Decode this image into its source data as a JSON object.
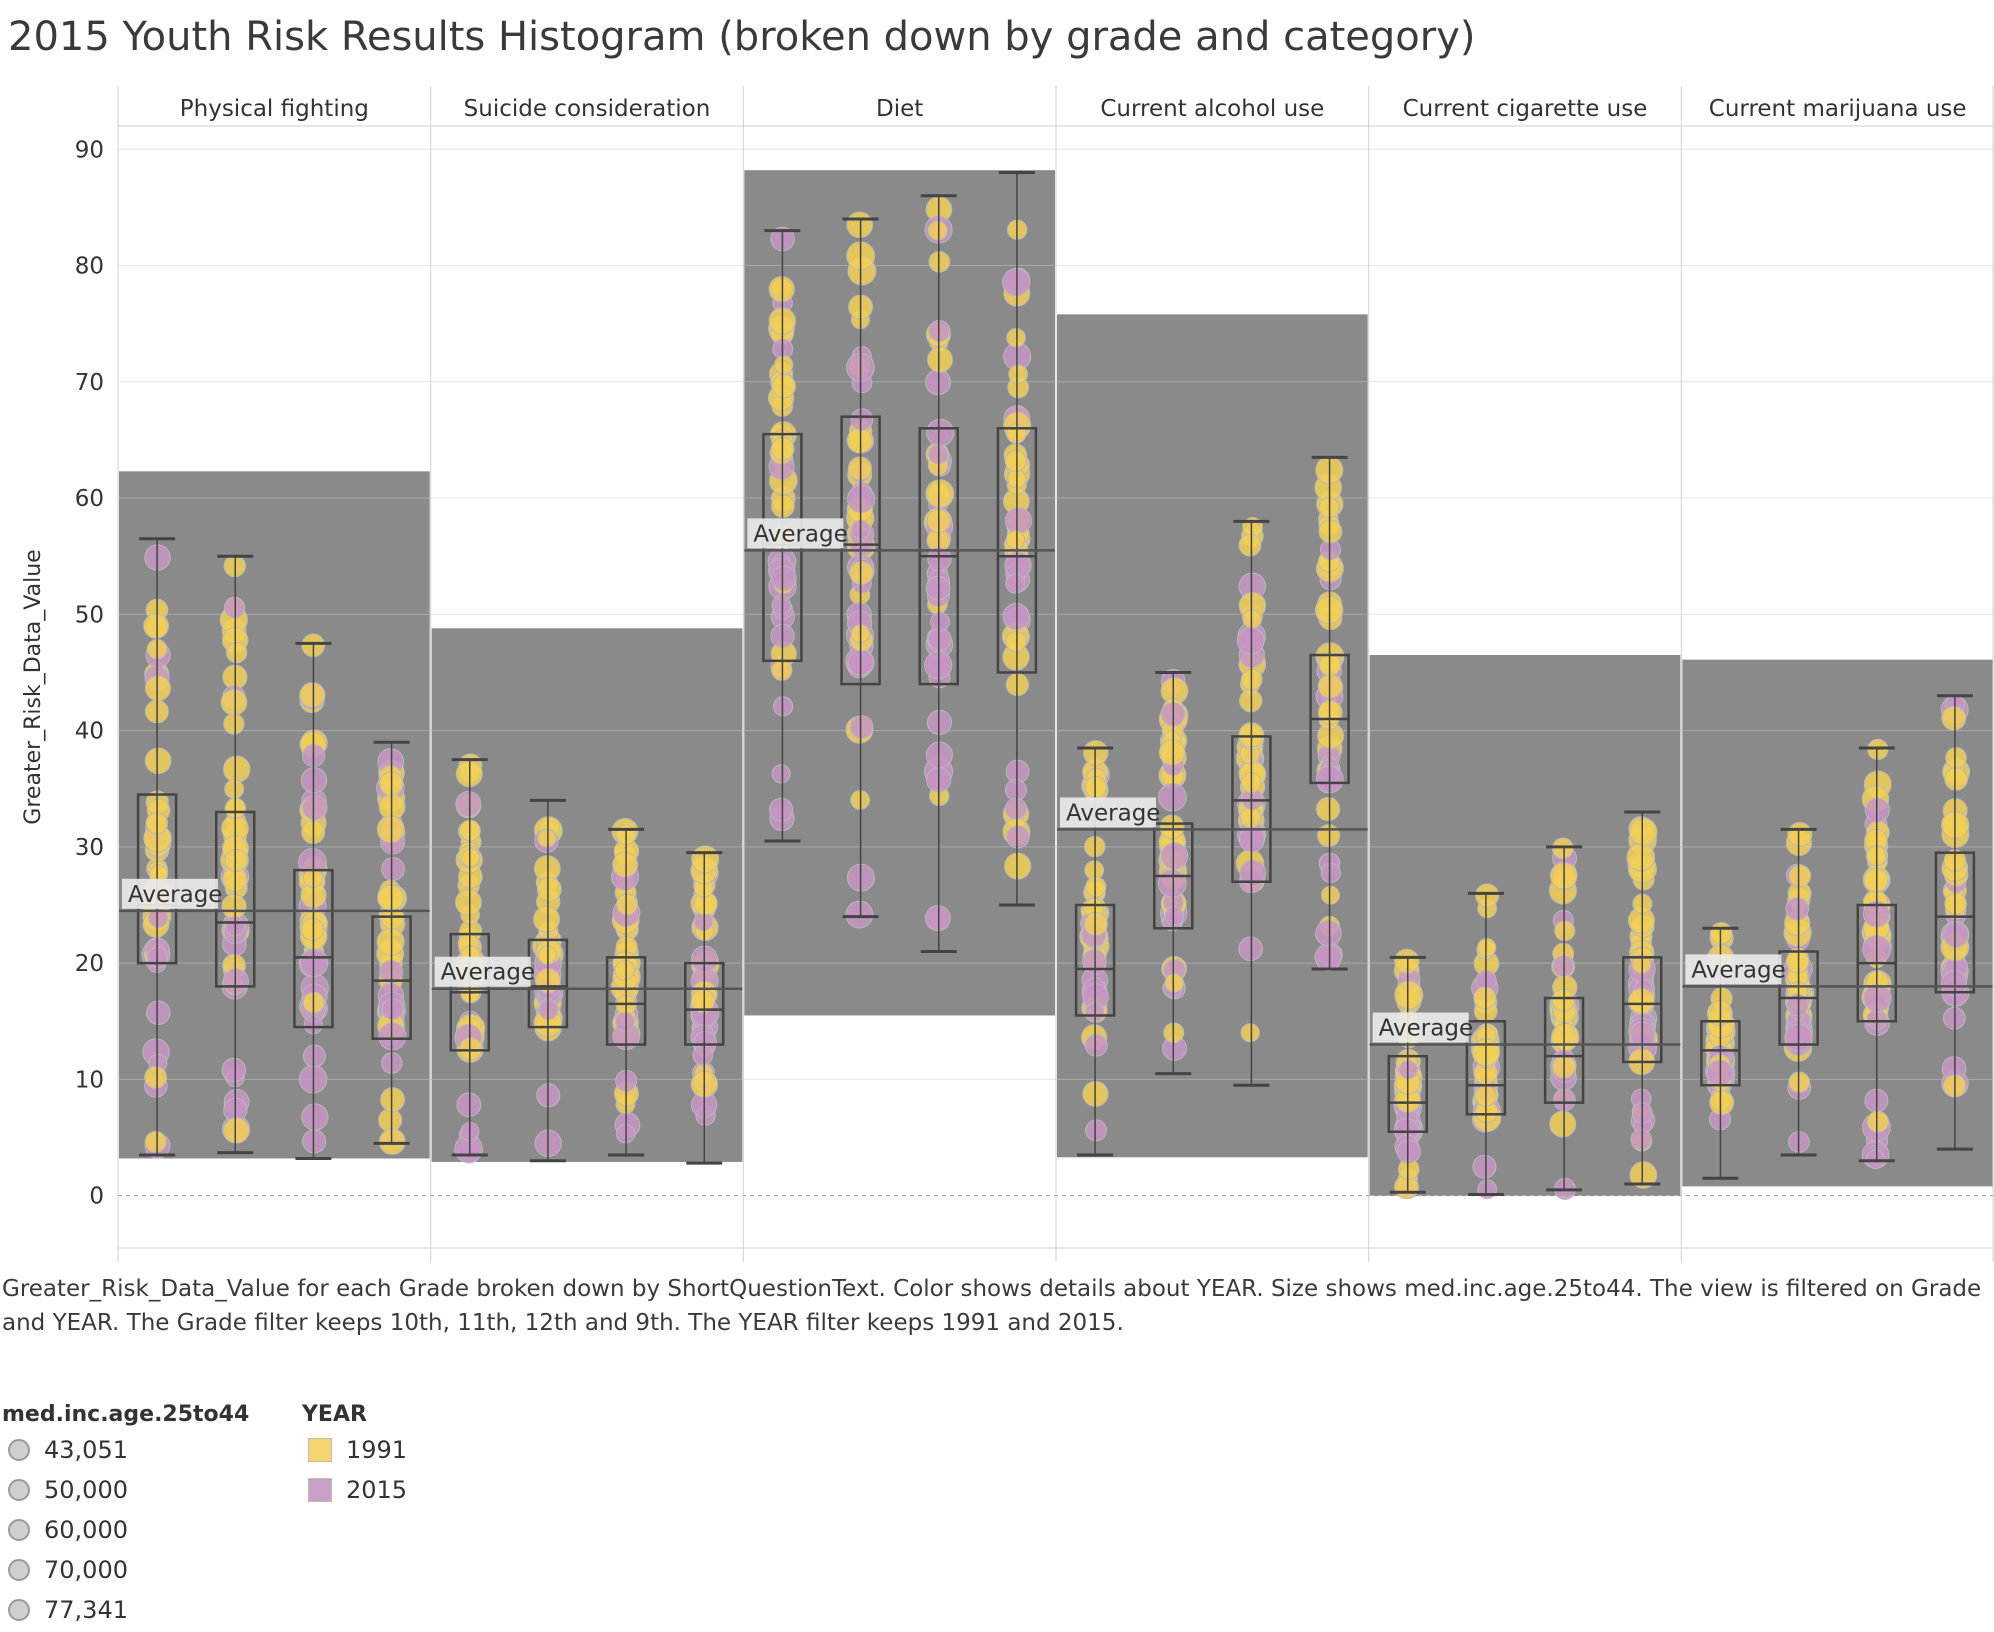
{
  "title": "2015 Youth Risk Results Histogram (broken down by grade and category)",
  "caption": "Greater_Risk_Data_Value for each Grade broken down by ShortQuestionText.  Color shows details about YEAR.  Size shows med.inc.age.25to44. The view is filtered on Grade and YEAR. The Grade filter keeps 10th, 11th, 12th and 9th. The YEAR filter keeps 1991 and 2015.",
  "legend_size": {
    "title": "med.inc.age.25to44",
    "items": [
      "43,051",
      "50,000",
      "60,000",
      "70,000",
      "77,341"
    ]
  },
  "legend_color": {
    "title": "YEAR",
    "items": [
      {
        "label": "1991",
        "color": "#f5d56e"
      },
      {
        "label": "2015",
        "color": "#c9a0c6"
      }
    ]
  },
  "colors": {
    "band": "#8a8a8a",
    "y1991": "#f2cf55",
    "y2015": "#c794c4",
    "grid": "#e6e6e6",
    "boxStroke": "#444444"
  },
  "chart_data": {
    "type": "scatter",
    "ylabel": "Greater_Risk_Data_Value",
    "ylim": [
      -4.5,
      92
    ],
    "yticks": [
      0,
      10,
      20,
      30,
      40,
      50,
      60,
      70,
      80,
      90
    ],
    "grades": [
      "9th",
      "10th",
      "11th",
      "12th"
    ],
    "average_label": "Average",
    "facets": [
      {
        "name": "Physical fighting",
        "average": 24.5,
        "band": [
          3.2,
          62.3
        ],
        "boxes": [
          {
            "grade": "9th",
            "wlo": 3.5,
            "q1": 20,
            "med": 25,
            "q3": 34.5,
            "whi": 56.5
          },
          {
            "grade": "10th",
            "wlo": 3.7,
            "q1": 18,
            "med": 23.5,
            "q3": 33,
            "whi": 55
          },
          {
            "grade": "11th",
            "wlo": 3.2,
            "q1": 14.5,
            "med": 20.5,
            "q3": 28,
            "whi": 47.5
          },
          {
            "grade": "12th",
            "wlo": 4.5,
            "q1": 13.5,
            "med": 18.5,
            "q3": 24,
            "whi": 39
          }
        ]
      },
      {
        "name": "Suicide consideration",
        "average": 17.8,
        "band": [
          2.9,
          48.8
        ],
        "boxes": [
          {
            "grade": "9th",
            "wlo": 3.5,
            "q1": 12.5,
            "med": 17.5,
            "q3": 22.5,
            "whi": 37.5
          },
          {
            "grade": "10th",
            "wlo": 3,
            "q1": 14.5,
            "med": 18,
            "q3": 22,
            "whi": 34
          },
          {
            "grade": "11th",
            "wlo": 3.5,
            "q1": 13,
            "med": 16.5,
            "q3": 20.5,
            "whi": 31.5
          },
          {
            "grade": "12th",
            "wlo": 2.8,
            "q1": 13,
            "med": 16,
            "q3": 20,
            "whi": 29.5
          }
        ]
      },
      {
        "name": "Diet",
        "average": 55.5,
        "band": [
          15.5,
          88.2
        ],
        "boxes": [
          {
            "grade": "9th",
            "wlo": 30.5,
            "q1": 46,
            "med": 56,
            "q3": 65.5,
            "whi": 83
          },
          {
            "grade": "10th",
            "wlo": 24,
            "q1": 44,
            "med": 56,
            "q3": 67,
            "whi": 84
          },
          {
            "grade": "11th",
            "wlo": 21,
            "q1": 44,
            "med": 55,
            "q3": 66,
            "whi": 86
          },
          {
            "grade": "12th",
            "wlo": 25,
            "q1": 45,
            "med": 55,
            "q3": 66,
            "whi": 88
          }
        ]
      },
      {
        "name": "Current alcohol use",
        "average": 31.5,
        "band": [
          3.3,
          75.8
        ],
        "boxes": [
          {
            "grade": "9th",
            "wlo": 3.5,
            "q1": 15.5,
            "med": 19.5,
            "q3": 25,
            "whi": 38.5
          },
          {
            "grade": "10th",
            "wlo": 10.5,
            "q1": 23,
            "med": 27.5,
            "q3": 32,
            "whi": 45
          },
          {
            "grade": "11th",
            "wlo": 9.5,
            "q1": 27,
            "med": 34,
            "q3": 39.5,
            "whi": 58
          },
          {
            "grade": "12th",
            "wlo": 19.5,
            "q1": 35.5,
            "med": 41,
            "q3": 46.5,
            "whi": 63.5
          }
        ]
      },
      {
        "name": "Current cigarette use",
        "average": 13,
        "band": [
          0,
          46.5
        ],
        "boxes": [
          {
            "grade": "9th",
            "wlo": 0.3,
            "q1": 5.5,
            "med": 8,
            "q3": 12,
            "whi": 20.5
          },
          {
            "grade": "10th",
            "wlo": 0.1,
            "q1": 7,
            "med": 9.5,
            "q3": 15,
            "whi": 26
          },
          {
            "grade": "11th",
            "wlo": 0.5,
            "q1": 8,
            "med": 12,
            "q3": 17,
            "whi": 30
          },
          {
            "grade": "12th",
            "wlo": 1,
            "q1": 11.5,
            "med": 16.5,
            "q3": 20.5,
            "whi": 33
          }
        ]
      },
      {
        "name": "Current marijuana use",
        "average": 18,
        "band": [
          0.8,
          46.1
        ],
        "boxes": [
          {
            "grade": "9th",
            "wlo": 1.5,
            "q1": 9.5,
            "med": 12.5,
            "q3": 15,
            "whi": 23
          },
          {
            "grade": "10th",
            "wlo": 3.5,
            "q1": 13,
            "med": 17,
            "q3": 21,
            "whi": 31.5
          },
          {
            "grade": "11th",
            "wlo": 3,
            "q1": 15,
            "med": 20,
            "q3": 25,
            "whi": 38.5
          },
          {
            "grade": "12th",
            "wlo": 4,
            "q1": 17.5,
            "med": 24,
            "q3": 29.5,
            "whi": 43
          }
        ]
      }
    ]
  }
}
